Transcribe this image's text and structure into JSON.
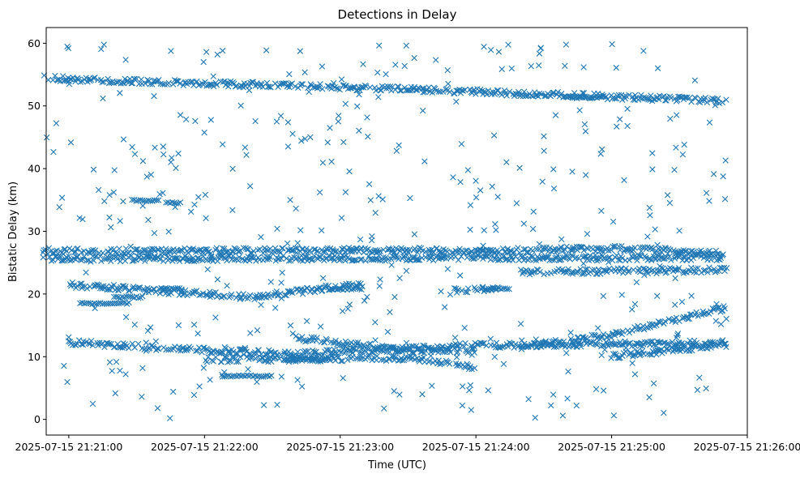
{
  "chart_data": {
    "type": "scatter",
    "title": "Detections in Delay",
    "xlabel": "Time (UTC)",
    "ylabel": "Bistatic Delay (km)",
    "marker": "x",
    "color": "#1f77b4",
    "grid": false,
    "legend": "none",
    "x_range_seconds": [
      -10,
      300
    ],
    "x_ticks": [
      {
        "t": 0,
        "label": "2025-07-15 21:21:00"
      },
      {
        "t": 60,
        "label": "2025-07-15 21:22:00"
      },
      {
        "t": 120,
        "label": "2025-07-15 21:23:00"
      },
      {
        "t": 180,
        "label": "2025-07-15 21:24:00"
      },
      {
        "t": 240,
        "label": "2025-07-15 21:25:00"
      },
      {
        "t": 300,
        "label": "2025-07-15 21:26:00"
      }
    ],
    "ylim": [
      -2.5,
      62.5
    ],
    "y_ticks": [
      0,
      10,
      20,
      30,
      40,
      50,
      60
    ],
    "time_span": [
      "2025-07-15 21:20:48",
      "2025-07-15 21:25:51"
    ],
    "tracks": [
      {
        "points": [
          [
            -12,
            26.8
          ],
          [
            150,
            27.0
          ],
          [
            180,
            26.8
          ],
          [
            240,
            27.3
          ],
          [
            291,
            26.4
          ]
        ]
      },
      {
        "points": [
          [
            -12,
            25.6
          ],
          [
            180,
            25.8
          ],
          [
            291,
            25.8
          ]
        ]
      },
      {
        "points": [
          [
            0,
            12.3
          ],
          [
            60,
            11.0
          ],
          [
            100,
            10.5
          ],
          [
            180,
            11.8
          ],
          [
            200,
            11.9
          ],
          [
            291,
            12.2
          ]
        ]
      },
      {
        "points": [
          [
            100,
            13.0
          ],
          [
            150,
            11.0
          ],
          [
            180,
            11.0
          ]
        ]
      },
      {
        "points": [
          [
            200,
            11.5
          ],
          [
            240,
            13.5
          ],
          [
            291,
            17.8
          ]
        ]
      },
      {
        "points": [
          [
            60,
            9.5
          ],
          [
            150,
            9.8
          ],
          [
            180,
            8.3
          ]
        ]
      },
      {
        "points": [
          [
            240,
            10.0
          ],
          [
            291,
            12.0
          ]
        ]
      },
      {
        "points": [
          [
            -12,
            54.7
          ],
          [
            0,
            54.2
          ],
          [
            120,
            53.0
          ],
          [
            160,
            52.5
          ],
          [
            291,
            50.8
          ]
        ]
      },
      {
        "points": [
          [
            0,
            21.5
          ],
          [
            40,
            20.5
          ],
          [
            80,
            19.5
          ],
          [
            130,
            21.5
          ]
        ]
      },
      {
        "points": [
          [
            200,
            23.5
          ],
          [
            291,
            23.8
          ]
        ]
      },
      {
        "points": [
          [
            170,
            20.5
          ],
          [
            190,
            20.8
          ]
        ]
      }
    ],
    "clusters": [
      {
        "t": [
          28,
          40
        ],
        "y": 34.9
      },
      {
        "t": [
          43,
          50
        ],
        "y": 34.5
      },
      {
        "t": [
          40,
          50
        ],
        "y": 20.8
      },
      {
        "t": [
          20,
          33
        ],
        "y": 19.5
      },
      {
        "t": [
          68,
          90
        ],
        "y": 6.9
      },
      {
        "t": [
          220,
          237
        ],
        "y": 51.4
      },
      {
        "t": [
          115,
          130
        ],
        "y": 20.8
      },
      {
        "t": [
          183,
          195
        ],
        "y": 20.8
      },
      {
        "t": [
          5,
          27
        ],
        "y": 18.5
      },
      {
        "t": [
          95,
          115
        ],
        "y": 9.5
      }
    ],
    "scatter_density": 420
  }
}
